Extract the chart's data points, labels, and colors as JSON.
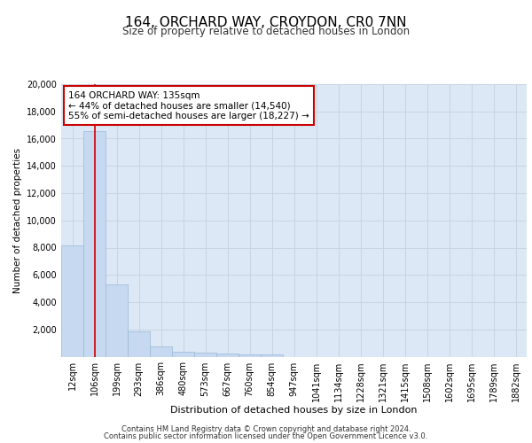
{
  "title_line1": "164, ORCHARD WAY, CROYDON, CR0 7NN",
  "title_line2": "Size of property relative to detached houses in London",
  "xlabel": "Distribution of detached houses by size in London",
  "ylabel": "Number of detached properties",
  "bar_labels": [
    "12sqm",
    "106sqm",
    "199sqm",
    "293sqm",
    "386sqm",
    "480sqm",
    "573sqm",
    "667sqm",
    "760sqm",
    "854sqm",
    "947sqm",
    "1041sqm",
    "1134sqm",
    "1228sqm",
    "1321sqm",
    "1415sqm",
    "1508sqm",
    "1602sqm",
    "1695sqm",
    "1789sqm",
    "1882sqm"
  ],
  "bar_values": [
    8150,
    16550,
    5300,
    1850,
    780,
    380,
    290,
    220,
    185,
    140,
    0,
    0,
    0,
    0,
    0,
    0,
    0,
    0,
    0,
    0,
    0
  ],
  "bar_color": "#c6d9f0",
  "bar_edge_color": "#9ab8d8",
  "property_line_x": 1,
  "annotation_title": "164 ORCHARD WAY: 135sqm",
  "annotation_line1": "← 44% of detached houses are smaller (14,540)",
  "annotation_line2": "55% of semi-detached houses are larger (18,227) →",
  "ylim": [
    0,
    20000
  ],
  "yticks": [
    0,
    2000,
    4000,
    6000,
    8000,
    10000,
    12000,
    14000,
    16000,
    18000,
    20000
  ],
  "red_line_color": "#cc0000",
  "annotation_box_color": "#ffffff",
  "annotation_box_edge": "#cc0000",
  "grid_color": "#c8d4e0",
  "bg_color": "#dce8f5",
  "footer_line1": "Contains HM Land Registry data © Crown copyright and database right 2024.",
  "footer_line2": "Contains public sector information licensed under the Open Government Licence v3.0."
}
